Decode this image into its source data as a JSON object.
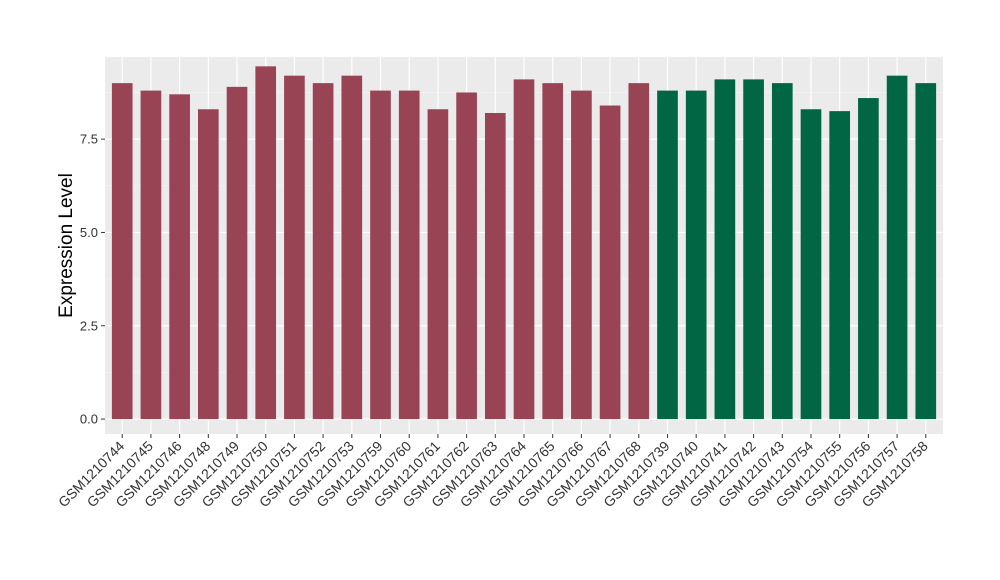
{
  "chart_data": {
    "type": "bar",
    "ylabel": "Expression Level",
    "xlabel": "",
    "ylim": [
      -0.4,
      9.7
    ],
    "yticks": [
      0.0,
      2.5,
      5.0,
      7.5
    ],
    "ytick_labels": [
      "0.0",
      "2.5",
      "5.0",
      "7.5"
    ],
    "grid": true,
    "legend": "none",
    "panel_color": "#ebebeb",
    "categories": [
      "GSM1210744",
      "GSM1210745",
      "GSM1210746",
      "GSM1210748",
      "GSM1210749",
      "GSM1210750",
      "GSM1210751",
      "GSM1210752",
      "GSM1210753",
      "GSM1210759",
      "GSM1210760",
      "GSM1210761",
      "GSM1210762",
      "GSM1210763",
      "GSM1210764",
      "GSM1210765",
      "GSM1210766",
      "GSM1210767",
      "GSM1210768",
      "GSM1210739",
      "GSM1210740",
      "GSM1210741",
      "GSM1210742",
      "GSM1210743",
      "GSM1210754",
      "GSM1210755",
      "GSM1210756",
      "GSM1210757",
      "GSM1210758"
    ],
    "values": [
      9.0,
      8.8,
      8.7,
      8.3,
      8.9,
      9.45,
      9.2,
      9.0,
      9.2,
      8.8,
      8.8,
      8.3,
      8.75,
      8.2,
      9.1,
      9.0,
      8.8,
      8.4,
      9.0,
      8.8,
      8.8,
      9.1,
      9.1,
      9.0,
      8.3,
      8.25,
      8.6,
      9.2,
      9.0
    ],
    "groups": [
      "a",
      "a",
      "a",
      "a",
      "a",
      "a",
      "a",
      "a",
      "a",
      "a",
      "a",
      "a",
      "a",
      "a",
      "a",
      "a",
      "a",
      "a",
      "a",
      "b",
      "b",
      "b",
      "b",
      "b",
      "b",
      "b",
      "b",
      "b",
      "b"
    ],
    "colors": {
      "a": "#994455",
      "b": "#006644"
    }
  }
}
